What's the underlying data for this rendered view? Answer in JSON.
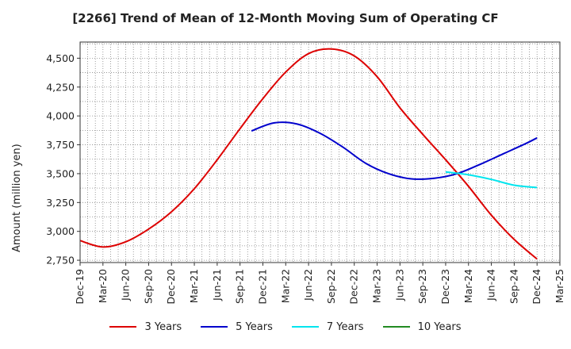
{
  "chart_data": {
    "type": "line",
    "title": "[2266]  Trend of Mean of 12-Month Moving Sum of Operating CF",
    "xlabel": "",
    "ylabel": "Amount (million yen)",
    "ylim": [
      2730,
      4640
    ],
    "yticks": [
      2750,
      3000,
      3250,
      3500,
      3750,
      4000,
      4250,
      4500
    ],
    "yticks_labels": [
      "2,750",
      "3,000",
      "3,250",
      "3,500",
      "3,750",
      "4,000",
      "4,250",
      "4,500"
    ],
    "x_categories": [
      "Dec-19",
      "Mar-20",
      "Jun-20",
      "Sep-20",
      "Dec-20",
      "Mar-21",
      "Jun-21",
      "Sep-21",
      "Dec-21",
      "Mar-22",
      "Jun-22",
      "Sep-22",
      "Dec-22",
      "Mar-23",
      "Jun-23",
      "Sep-23",
      "Dec-23",
      "Mar-24",
      "Jun-24",
      "Sep-24",
      "Dec-24",
      "Mar-25"
    ],
    "grid": true,
    "legend_position": "bottom",
    "series": [
      {
        "name": "3 Years",
        "color": "#dd0000",
        "points": [
          [
            0,
            2920
          ],
          [
            1,
            2865
          ],
          [
            2,
            2910
          ],
          [
            3,
            3020
          ],
          [
            4,
            3170
          ],
          [
            5,
            3370
          ],
          [
            6,
            3620
          ],
          [
            7,
            3890
          ],
          [
            8,
            4150
          ],
          [
            9,
            4380
          ],
          [
            10,
            4540
          ],
          [
            11,
            4580
          ],
          [
            12,
            4520
          ],
          [
            13,
            4340
          ],
          [
            14,
            4070
          ],
          [
            15,
            3840
          ],
          [
            16,
            3620
          ],
          [
            17,
            3390
          ],
          [
            18,
            3140
          ],
          [
            19,
            2930
          ],
          [
            20,
            2760
          ]
        ]
      },
      {
        "name": "5 Years",
        "color": "#0000cc",
        "points": [
          [
            7.5,
            3870
          ],
          [
            8.5,
            3940
          ],
          [
            9.5,
            3930
          ],
          [
            10.5,
            3850
          ],
          [
            11.5,
            3730
          ],
          [
            12.5,
            3590
          ],
          [
            13.5,
            3500
          ],
          [
            14.5,
            3455
          ],
          [
            15.5,
            3460
          ],
          [
            16.5,
            3500
          ],
          [
            17.5,
            3580
          ],
          [
            18.5,
            3670
          ],
          [
            19.5,
            3760
          ],
          [
            20,
            3810
          ]
        ]
      },
      {
        "name": "7 Years",
        "color": "#00e5ee",
        "points": [
          [
            16,
            3515
          ],
          [
            17,
            3490
          ],
          [
            18,
            3450
          ],
          [
            19,
            3400
          ],
          [
            20,
            3380
          ]
        ]
      },
      {
        "name": "10 Years",
        "color": "#228b22",
        "points": []
      }
    ]
  }
}
